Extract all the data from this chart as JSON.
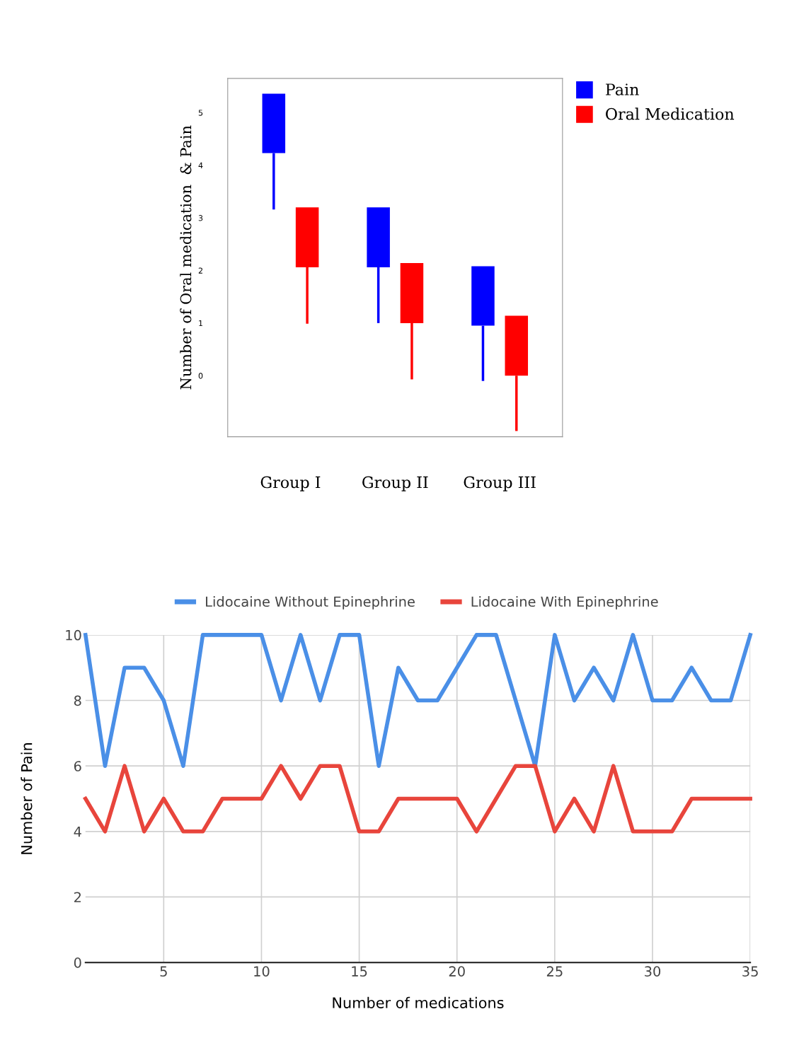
{
  "chart_data": [
    {
      "type": "bar",
      "ylabel": "Number of Oral medication  & Pain",
      "categories": [
        "Group I",
        "Group II",
        "Group III"
      ],
      "series": [
        {
          "name": "Pain",
          "color": "#0000ff",
          "base": [
            4.23,
            2.06,
            0.95
          ],
          "values": [
            1.13,
            1.14,
            1.13
          ],
          "errors": [
            [
              3.16,
              4.23
            ],
            [
              1.0,
              2.06
            ],
            [
              -0.1,
              0.95
            ]
          ]
        },
        {
          "name": "Oral Medication",
          "color": "#ff0000",
          "base": [
            2.06,
            1.0,
            0.0
          ],
          "values": [
            1.14,
            1.14,
            1.14
          ],
          "errors": [
            [
              0.99,
              2.06
            ],
            [
              -0.07,
              1.0
            ],
            [
              -1.05,
              0.0
            ]
          ]
        }
      ],
      "ylim": [
        -1.16,
        5.65
      ],
      "yticks": [
        0,
        1,
        2,
        3,
        4,
        5
      ],
      "grid": false,
      "legend": "top right"
    },
    {
      "type": "line",
      "xlabel": "Number of medications",
      "ylabel": "Number of Pain",
      "x": [
        1,
        2,
        3,
        4,
        5,
        6,
        7,
        8,
        9,
        10,
        11,
        12,
        13,
        14,
        15,
        16,
        17,
        18,
        19,
        20,
        21,
        22,
        23,
        24,
        25,
        26,
        27,
        28,
        29,
        30,
        31,
        32,
        33,
        34,
        35
      ],
      "series": [
        {
          "name": "Lidocaine Without Epinephrine",
          "color": "#4a8fe7",
          "values": [
            10,
            6,
            9,
            9,
            8,
            6,
            10,
            10,
            10,
            10,
            8,
            10,
            8,
            10,
            10,
            6,
            9,
            8,
            8,
            9,
            10,
            10,
            8,
            6,
            10,
            8,
            9,
            8,
            10,
            8,
            8,
            9,
            8,
            8,
            10
          ]
        },
        {
          "name": "Lidocaine With Epinephrine",
          "color": "#e8453c",
          "values": [
            5,
            4,
            6,
            4,
            5,
            4,
            4,
            5,
            5,
            5,
            6,
            5,
            6,
            6,
            4,
            4,
            5,
            5,
            5,
            5,
            4,
            5,
            6,
            6,
            4,
            5,
            4,
            6,
            4,
            4,
            4,
            5,
            5,
            5,
            5
          ]
        }
      ],
      "xlim": [
        1,
        35
      ],
      "xticks": [
        5,
        10,
        15,
        20,
        25,
        30,
        35
      ],
      "ylim": [
        0,
        10
      ],
      "yticks": [
        0,
        2,
        4,
        6,
        8,
        10
      ],
      "grid": true,
      "legend": "top",
      "marker": "none",
      "line_style": "solid"
    }
  ]
}
